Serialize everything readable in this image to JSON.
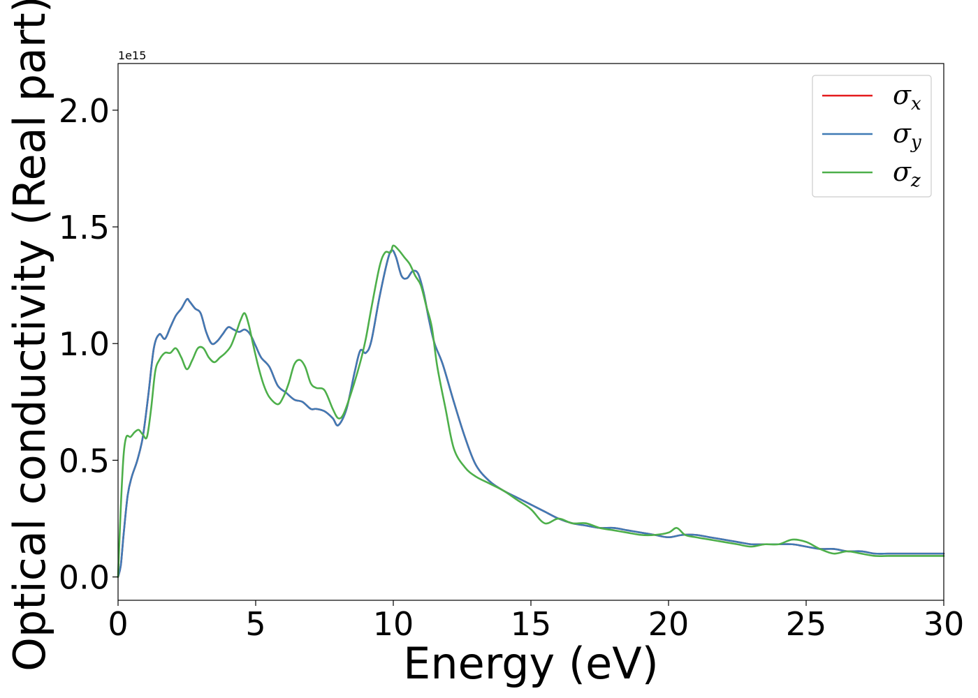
{
  "chart_data": {
    "type": "line",
    "xlabel": "Energy (eV)",
    "ylabel": "Optical conductivity (Real part)",
    "y_offset_label": "1e15",
    "xlim": [
      0,
      30
    ],
    "ylim": [
      -0.1,
      2.2
    ],
    "x_ticks": [
      "0",
      "5",
      "10",
      "15",
      "20",
      "25",
      "30"
    ],
    "y_ticks": [
      "0.0",
      "0.5",
      "1.0",
      "1.5",
      "2.0"
    ],
    "legend_position": "upper-right",
    "series": [
      {
        "name": "σx",
        "legend_symbol": "σ",
        "legend_subscript": "x",
        "color": "#e41a1c",
        "x": [
          0,
          0.1,
          0.2,
          0.35,
          0.5,
          0.7,
          0.9,
          1.1,
          1.3,
          1.5,
          1.7,
          1.9,
          2.1,
          2.3,
          2.5,
          2.6,
          2.8,
          3.0,
          3.2,
          3.4,
          3.6,
          3.8,
          4.0,
          4.2,
          4.4,
          4.6,
          4.8,
          5.0,
          5.2,
          5.5,
          5.8,
          6.1,
          6.4,
          6.7,
          7.0,
          7.2,
          7.5,
          7.8,
          8.0,
          8.3,
          8.6,
          8.8,
          9.0,
          9.2,
          9.5,
          9.8,
          9.95,
          10.1,
          10.3,
          10.5,
          10.7,
          10.9,
          11.1,
          11.3,
          11.5,
          11.8,
          12.2,
          12.6,
          13.0,
          13.5,
          14.0,
          14.5,
          15.0,
          15.5,
          16.0,
          16.5,
          17.0,
          17.5,
          18.0,
          18.5,
          19.0,
          19.5,
          20.0,
          20.5,
          21.0,
          21.5,
          22.0,
          22.5,
          23.0,
          23.5,
          24.0,
          24.5,
          25.0,
          25.5,
          26.0,
          26.5,
          27.0,
          27.5,
          28.0,
          28.5,
          29.0,
          29.5,
          30.0
        ],
        "y": [
          0.0,
          0.05,
          0.18,
          0.35,
          0.43,
          0.5,
          0.6,
          0.78,
          0.98,
          1.04,
          1.02,
          1.07,
          1.12,
          1.15,
          1.19,
          1.18,
          1.15,
          1.13,
          1.05,
          1.0,
          1.01,
          1.04,
          1.07,
          1.06,
          1.05,
          1.06,
          1.04,
          0.99,
          0.94,
          0.9,
          0.82,
          0.79,
          0.76,
          0.75,
          0.72,
          0.72,
          0.71,
          0.68,
          0.65,
          0.72,
          0.88,
          0.97,
          0.96,
          1.01,
          1.2,
          1.36,
          1.4,
          1.37,
          1.29,
          1.28,
          1.31,
          1.3,
          1.22,
          1.1,
          1.0,
          0.91,
          0.75,
          0.6,
          0.48,
          0.41,
          0.37,
          0.34,
          0.31,
          0.28,
          0.25,
          0.23,
          0.22,
          0.21,
          0.21,
          0.2,
          0.19,
          0.18,
          0.17,
          0.18,
          0.18,
          0.17,
          0.16,
          0.15,
          0.14,
          0.14,
          0.14,
          0.14,
          0.13,
          0.12,
          0.12,
          0.11,
          0.11,
          0.1,
          0.1,
          0.1,
          0.1,
          0.1,
          0.1
        ]
      },
      {
        "name": "σy",
        "legend_symbol": "σ",
        "legend_subscript": "y",
        "color": "#3f7ab5",
        "x": [
          0,
          0.1,
          0.2,
          0.35,
          0.5,
          0.7,
          0.9,
          1.1,
          1.3,
          1.5,
          1.7,
          1.9,
          2.1,
          2.3,
          2.5,
          2.6,
          2.8,
          3.0,
          3.2,
          3.4,
          3.6,
          3.8,
          4.0,
          4.2,
          4.4,
          4.6,
          4.8,
          5.0,
          5.2,
          5.5,
          5.8,
          6.1,
          6.4,
          6.7,
          7.0,
          7.2,
          7.5,
          7.8,
          8.0,
          8.3,
          8.6,
          8.8,
          9.0,
          9.2,
          9.5,
          9.8,
          9.95,
          10.1,
          10.3,
          10.5,
          10.7,
          10.9,
          11.1,
          11.3,
          11.5,
          11.8,
          12.2,
          12.6,
          13.0,
          13.5,
          14.0,
          14.5,
          15.0,
          15.5,
          16.0,
          16.5,
          17.0,
          17.5,
          18.0,
          18.5,
          19.0,
          19.5,
          20.0,
          20.5,
          21.0,
          21.5,
          22.0,
          22.5,
          23.0,
          23.5,
          24.0,
          24.5,
          25.0,
          25.5,
          26.0,
          26.5,
          27.0,
          27.5,
          28.0,
          28.5,
          29.0,
          29.5,
          30.0
        ],
        "y": [
          0.0,
          0.05,
          0.18,
          0.35,
          0.43,
          0.5,
          0.6,
          0.78,
          0.98,
          1.04,
          1.02,
          1.07,
          1.12,
          1.15,
          1.19,
          1.18,
          1.15,
          1.13,
          1.05,
          1.0,
          1.01,
          1.04,
          1.07,
          1.06,
          1.05,
          1.06,
          1.04,
          0.99,
          0.94,
          0.9,
          0.82,
          0.79,
          0.76,
          0.75,
          0.72,
          0.72,
          0.71,
          0.68,
          0.65,
          0.72,
          0.88,
          0.97,
          0.96,
          1.01,
          1.2,
          1.36,
          1.4,
          1.37,
          1.29,
          1.28,
          1.31,
          1.3,
          1.22,
          1.1,
          1.0,
          0.91,
          0.75,
          0.6,
          0.48,
          0.41,
          0.37,
          0.34,
          0.31,
          0.28,
          0.25,
          0.23,
          0.22,
          0.21,
          0.21,
          0.2,
          0.19,
          0.18,
          0.17,
          0.18,
          0.18,
          0.17,
          0.16,
          0.15,
          0.14,
          0.14,
          0.14,
          0.14,
          0.13,
          0.12,
          0.12,
          0.11,
          0.11,
          0.1,
          0.1,
          0.1,
          0.1,
          0.1,
          0.1
        ]
      },
      {
        "name": "σz",
        "legend_symbol": "σ",
        "legend_subscript": "z",
        "color": "#4daf4a",
        "x": [
          0,
          0.1,
          0.2,
          0.3,
          0.45,
          0.6,
          0.75,
          0.9,
          1.05,
          1.2,
          1.35,
          1.5,
          1.7,
          1.9,
          2.1,
          2.3,
          2.5,
          2.7,
          2.9,
          3.1,
          3.3,
          3.5,
          3.7,
          3.9,
          4.1,
          4.3,
          4.45,
          4.6,
          4.75,
          4.9,
          5.1,
          5.3,
          5.5,
          5.8,
          6.0,
          6.2,
          6.4,
          6.6,
          6.8,
          7.0,
          7.2,
          7.5,
          7.8,
          8.0,
          8.2,
          8.5,
          8.8,
          9.0,
          9.2,
          9.5,
          9.7,
          9.9,
          10.0,
          10.2,
          10.4,
          10.6,
          10.8,
          11.0,
          11.2,
          11.4,
          11.6,
          11.9,
          12.2,
          12.6,
          13.0,
          13.5,
          14.0,
          14.5,
          15.0,
          15.5,
          16.0,
          16.5,
          17.0,
          17.5,
          18.0,
          18.5,
          19.0,
          19.5,
          20.0,
          20.3,
          20.6,
          21.0,
          21.5,
          22.0,
          22.5,
          23.0,
          23.5,
          24.0,
          24.5,
          25.0,
          25.5,
          26.0,
          26.5,
          27.0,
          27.5,
          28.0,
          28.5,
          29.0,
          29.5,
          30.0
        ],
        "y": [
          0.0,
          0.3,
          0.52,
          0.6,
          0.6,
          0.62,
          0.63,
          0.61,
          0.6,
          0.72,
          0.88,
          0.93,
          0.96,
          0.96,
          0.98,
          0.94,
          0.89,
          0.93,
          0.98,
          0.98,
          0.94,
          0.92,
          0.94,
          0.96,
          0.99,
          1.05,
          1.1,
          1.13,
          1.08,
          1.0,
          0.9,
          0.82,
          0.77,
          0.74,
          0.77,
          0.83,
          0.91,
          0.93,
          0.9,
          0.83,
          0.81,
          0.8,
          0.72,
          0.68,
          0.7,
          0.8,
          0.92,
          1.02,
          1.15,
          1.33,
          1.39,
          1.39,
          1.42,
          1.4,
          1.37,
          1.34,
          1.29,
          1.25,
          1.16,
          1.07,
          0.9,
          0.72,
          0.55,
          0.47,
          0.43,
          0.4,
          0.37,
          0.33,
          0.29,
          0.23,
          0.25,
          0.23,
          0.23,
          0.21,
          0.2,
          0.19,
          0.18,
          0.18,
          0.19,
          0.21,
          0.18,
          0.17,
          0.16,
          0.15,
          0.14,
          0.13,
          0.14,
          0.14,
          0.16,
          0.15,
          0.12,
          0.1,
          0.11,
          0.1,
          0.09,
          0.09,
          0.09,
          0.09,
          0.09,
          0.09
        ]
      }
    ]
  }
}
